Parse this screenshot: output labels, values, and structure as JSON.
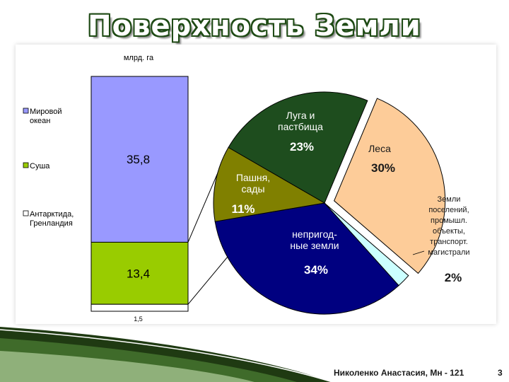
{
  "title": "Поверхность Земли",
  "footer": {
    "author": "Николенко Анастасия, Мн - 121",
    "page": "3"
  },
  "colors": {
    "title_outline": "#1e4a14",
    "accent_green": "#2e6b1e",
    "deco_dark": "#1f3a12"
  },
  "chart_data": [
    {
      "type": "bar",
      "stacked": true,
      "unit_label": "млрд. га",
      "ylabel": "млрд. га",
      "series": [
        {
          "name": "Мировой океан",
          "value": 35.8,
          "label": "35,8",
          "color": "#9999ff"
        },
        {
          "name": "Суша",
          "value": 13.4,
          "label": "13,4",
          "color": "#99cc00"
        },
        {
          "name": "Антарктида, Гренландия",
          "value": 1.5,
          "label": "1,5",
          "color": "#ffffff"
        }
      ],
      "legend_position": "left"
    },
    {
      "type": "pie",
      "slices": [
        {
          "name": "Луга и пастбища",
          "lines": [
            "Луга и",
            "пастбища"
          ],
          "value": 23,
          "label": "23%",
          "color": "#1e4d1e",
          "text_color": "#ffffff"
        },
        {
          "name": "Леса",
          "lines": [
            "Леса"
          ],
          "value": 30,
          "label": "30%",
          "color": "#fdcc99",
          "text_color": "#1a1a1a",
          "exploded": true
        },
        {
          "name": "Земли поселений, промышл. объекты, транспорт. магистрали",
          "lines": [
            "Земли",
            "поселений,",
            "промышл.",
            "объекты,",
            "транспорт.",
            "магистрали"
          ],
          "value": 2,
          "label": "2%",
          "color": "#ccffff",
          "text_color": "#1a1a1a"
        },
        {
          "name": "непригодные земли",
          "lines": [
            "непригод-",
            "ные земли"
          ],
          "value": 34,
          "label": "34%",
          "color": "#000080",
          "text_color": "#ffffff"
        },
        {
          "name": "Пашня, сады",
          "lines": [
            "Пашня,",
            "сады"
          ],
          "value": 11,
          "label": "11%",
          "color": "#808000",
          "text_color": "#ffffff"
        }
      ]
    }
  ]
}
